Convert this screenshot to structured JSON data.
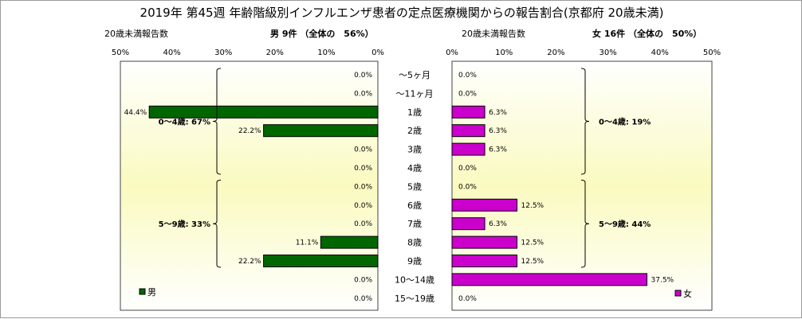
{
  "chart_data": {
    "type": "bar",
    "title": "2019年 第45週 年齢階級別インフルエンザ患者の定点医療機関からの報告割合(京都府 20歳未満)",
    "categories": [
      "～5ヶ月",
      "～11ヶ月",
      "1歳",
      "2歳",
      "3歳",
      "4歳",
      "5歳",
      "6歳",
      "7歳",
      "8歳",
      "9歳",
      "10～14歳",
      "15～19歳"
    ],
    "series": [
      {
        "name": "男",
        "values": [
          0,
          0,
          44.4,
          22.2,
          0,
          0,
          0,
          0,
          0,
          11.1,
          22.2,
          0,
          0
        ],
        "value_labels": [
          "0.0%",
          "0.0%",
          "44.4%",
          "22.2%",
          "0.0%",
          "0.0%",
          "0.0%",
          "0.0%",
          "0.0%",
          "11.1%",
          "22.2%",
          "0.0%",
          "0.0%"
        ],
        "color": "#006600"
      },
      {
        "name": "女",
        "values": [
          0,
          0,
          6.3,
          6.3,
          6.3,
          0,
          0,
          12.5,
          6.3,
          12.5,
          12.5,
          37.5,
          0
        ],
        "value_labels": [
          "0.0%",
          "0.0%",
          "6.3%",
          "6.3%",
          "6.3%",
          "0.0%",
          "0.0%",
          "12.5%",
          "6.3%",
          "12.5%",
          "12.5%",
          "37.5%",
          "0.0%"
        ],
        "color": "#cc00cc"
      }
    ],
    "left_panel": {
      "caption": "20歳未満報告数",
      "header": "男 9件 （全体の　56%）",
      "ticks": [
        "50%",
        "40%",
        "30%",
        "20%",
        "10%",
        "0%"
      ],
      "xlim": [
        0,
        50
      ],
      "groups": [
        {
          "label": "0～4歳: 67%",
          "from": 0,
          "to": 5
        },
        {
          "label": "5～9歳: 33%",
          "from": 6,
          "to": 10
        }
      ]
    },
    "right_panel": {
      "caption": "20歳未満報告数",
      "header": "女 16件 （全体の　50%）",
      "ticks": [
        "0%",
        "10%",
        "20%",
        "30%",
        "40%",
        "50%"
      ],
      "xlim": [
        0,
        50
      ],
      "groups": [
        {
          "label": "0～4歳: 19%",
          "from": 0,
          "to": 5
        },
        {
          "label": "5～9歳: 44%",
          "from": 6,
          "to": 10
        }
      ]
    },
    "legend": [
      {
        "label": "男",
        "color": "#006600"
      },
      {
        "label": "女",
        "color": "#cc00cc"
      }
    ],
    "background": {
      "panel_gradient_mid": "#fafac0",
      "panel_gradient_edge": "#ffffff"
    }
  }
}
